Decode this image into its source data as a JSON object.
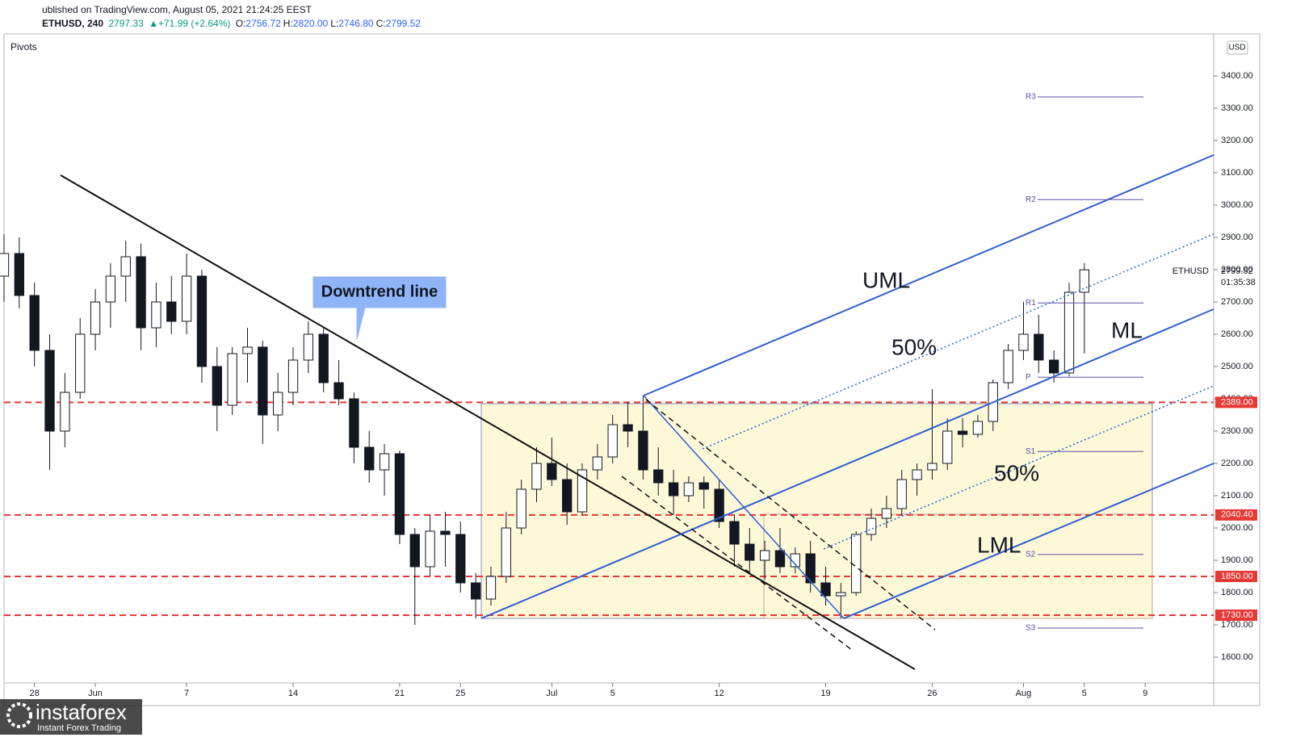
{
  "chart_data": {
    "type": "candlestick",
    "published": "ublished on TradingView.com, August 05, 2021 21:24:25 EEST",
    "symbol": "ETHUSD, 240",
    "last": "2797.33",
    "change": "▲+71.99 (+2.64%)",
    "ohlc_legend": [
      {
        "key": "O:",
        "value": "2756.72"
      },
      {
        "key": "H:",
        "value": "2820.00"
      },
      {
        "key": "L:",
        "value": "2746.80"
      },
      {
        "key": "C:",
        "value": "2799.52"
      }
    ],
    "indicator": "Pivots",
    "currency": "USD",
    "price_tag": {
      "symbol": "ETHUSD",
      "price": "2799.52",
      "countdown": "01:35:38"
    },
    "annotations": {
      "callout": "Downtrend line",
      "uml": "UML",
      "upper_half": "50%",
      "ml": "ML",
      "lower_half": "50%",
      "lml": "LML"
    },
    "watermark": {
      "brand": "instaforex",
      "tagline": "Instant Forex Trading"
    },
    "x": [
      -2,
      -1,
      0,
      1,
      2,
      3,
      4,
      5,
      6,
      7,
      8,
      9,
      10,
      11,
      12,
      13,
      14,
      15,
      16,
      17,
      18,
      19,
      20,
      21,
      22,
      23,
      24,
      25,
      26,
      27,
      28,
      29,
      30,
      31,
      32,
      33,
      34,
      35,
      36,
      37,
      38,
      39,
      40,
      41,
      42,
      43,
      44,
      45,
      46,
      47,
      48,
      49,
      50,
      51,
      52,
      53,
      54,
      55,
      56,
      57,
      58,
      59,
      60,
      61,
      62,
      63,
      64,
      65,
      66,
      67,
      68,
      69
    ],
    "open": [
      2780,
      2850,
      2720,
      2550,
      2300,
      2420,
      2600,
      2700,
      2780,
      2840,
      2620,
      2700,
      2640,
      2780,
      2500,
      2380,
      2540,
      2560,
      2350,
      2420,
      2520,
      2600,
      2450,
      2400,
      2250,
      2180,
      2230,
      1980,
      1880,
      1990,
      1980,
      1830,
      1780,
      1850,
      2000,
      2120,
      2200,
      2150,
      2050,
      2180,
      2220,
      2320,
      2300,
      2180,
      2140,
      2100,
      2140,
      2120,
      2020,
      1950,
      1900,
      1930,
      1880,
      1920,
      1830,
      1790,
      1800,
      1980,
      2030,
      2060,
      2150,
      2180,
      2200,
      2300,
      2290,
      2330,
      2450,
      2550,
      2600,
      2520,
      2480,
      2730
    ],
    "high": [
      2910,
      2900,
      2760,
      2600,
      2480,
      2650,
      2740,
      2820,
      2890,
      2880,
      2760,
      2780,
      2850,
      2800,
      2560,
      2560,
      2620,
      2580,
      2480,
      2560,
      2640,
      2620,
      2520,
      2420,
      2300,
      2260,
      2240,
      2000,
      2040,
      2050,
      2020,
      1860,
      1880,
      2050,
      2150,
      2250,
      2280,
      2200,
      2200,
      2260,
      2350,
      2390,
      2410,
      2250,
      2180,
      2160,
      2160,
      2150,
      2040,
      2000,
      1960,
      2000,
      1940,
      1960,
      1880,
      1830,
      1990,
      2060,
      2100,
      2180,
      2200,
      2430,
      2340,
      2340,
      2350,
      2460,
      2570,
      2700,
      2660,
      2550,
      2760,
      2820
    ],
    "low": [
      2700,
      2680,
      2500,
      2180,
      2250,
      2400,
      2550,
      2620,
      2700,
      2550,
      2560,
      2600,
      2600,
      2450,
      2300,
      2350,
      2450,
      2260,
      2300,
      2380,
      2480,
      2420,
      2380,
      2200,
      2140,
      2100,
      1950,
      1700,
      1850,
      1880,
      1800,
      1720,
      1760,
      1830,
      1980,
      2080,
      2130,
      2010,
      2040,
      2150,
      2200,
      2250,
      2150,
      2100,
      2040,
      2080,
      2060,
      2000,
      1880,
      1860,
      1840,
      1860,
      1860,
      1800,
      1760,
      1720,
      1790,
      1960,
      2000,
      2040,
      2100,
      2150,
      2180,
      2250,
      2280,
      2300,
      2430,
      2520,
      2480,
      2450,
      2470,
      2540
    ],
    "close": [
      2850,
      2720,
      2550,
      2300,
      2420,
      2600,
      2700,
      2780,
      2840,
      2620,
      2700,
      2640,
      2780,
      2500,
      2380,
      2540,
      2560,
      2350,
      2420,
      2520,
      2600,
      2450,
      2400,
      2250,
      2180,
      2230,
      1980,
      1880,
      1990,
      1980,
      1830,
      1780,
      1850,
      2000,
      2120,
      2200,
      2150,
      2050,
      2180,
      2220,
      2320,
      2300,
      2180,
      2140,
      2100,
      2140,
      2120,
      2020,
      1950,
      1900,
      1930,
      1880,
      1920,
      1830,
      1790,
      1800,
      1980,
      2030,
      2060,
      2150,
      2180,
      2200,
      2300,
      2290,
      2330,
      2450,
      2550,
      2600,
      2520,
      2480,
      2730,
      2799.52
    ],
    "xlim": [
      -2,
      77.5
    ],
    "ylim": [
      1520,
      3530
    ],
    "xticks": [
      {
        "value": 0,
        "label": "28"
      },
      {
        "value": 4,
        "label": "Jun"
      },
      {
        "value": 10,
        "label": "7"
      },
      {
        "value": 17,
        "label": "14"
      },
      {
        "value": 24,
        "label": "21"
      },
      {
        "value": 28,
        "label": "25"
      },
      {
        "value": 34,
        "label": "Jul"
      },
      {
        "value": 38,
        "label": "5"
      },
      {
        "value": 45,
        "label": "12"
      },
      {
        "value": 52,
        "label": "19"
      },
      {
        "value": 59,
        "label": "26"
      },
      {
        "value": 65,
        "label": "Aug"
      },
      {
        "value": 69,
        "label": "5"
      },
      {
        "value": 73,
        "label": "9"
      }
    ],
    "yticks": [
      {
        "value": 1600,
        "label": "1600.00"
      },
      {
        "value": 1700,
        "label": "1700.00"
      },
      {
        "value": 1800,
        "label": "1800.00"
      },
      {
        "value": 1900,
        "label": "1900.00"
      },
      {
        "value": 2000,
        "label": "2000.00"
      },
      {
        "value": 2100,
        "label": "2100.00"
      },
      {
        "value": 2200,
        "label": "2200.00"
      },
      {
        "value": 2300,
        "label": "2300.00"
      },
      {
        "value": 2400,
        "label": "2400.00"
      },
      {
        "value": 2500,
        "label": "2500.00"
      },
      {
        "value": 2600,
        "label": "2600.00"
      },
      {
        "value": 2700,
        "label": "2700.00"
      },
      {
        "value": 2800,
        "label": "2800.00"
      },
      {
        "value": 2900,
        "label": "2900.00"
      },
      {
        "value": 3000,
        "label": "3000.00"
      },
      {
        "value": 3100,
        "label": "3100.00"
      },
      {
        "value": 3200,
        "label": "3200.00"
      },
      {
        "value": 3300,
        "label": "3300.00"
      },
      {
        "value": 3400,
        "label": "3400.00"
      }
    ],
    "levels": [
      {
        "value": 2389,
        "label": "2389.00"
      },
      {
        "value": 2040.4,
        "label": "2040.40"
      },
      {
        "value": 1850,
        "label": "1850.00"
      },
      {
        "value": 1730,
        "label": "1730.00"
      }
    ],
    "level_color": "#e53935",
    "pivots": [
      {
        "name": "R3",
        "value": 3335
      },
      {
        "name": "R2",
        "value": 3017
      },
      {
        "name": "R1",
        "value": 2697
      },
      {
        "name": "P",
        "value": 2467
      },
      {
        "name": "S1",
        "value": 2237
      },
      {
        "name": "S2",
        "value": 1918
      },
      {
        "name": "S3",
        "value": 1690
      }
    ],
    "pivot_color": "#5b4fa8",
    "up_color": "#ffffff",
    "down_color": "#131722"
  }
}
